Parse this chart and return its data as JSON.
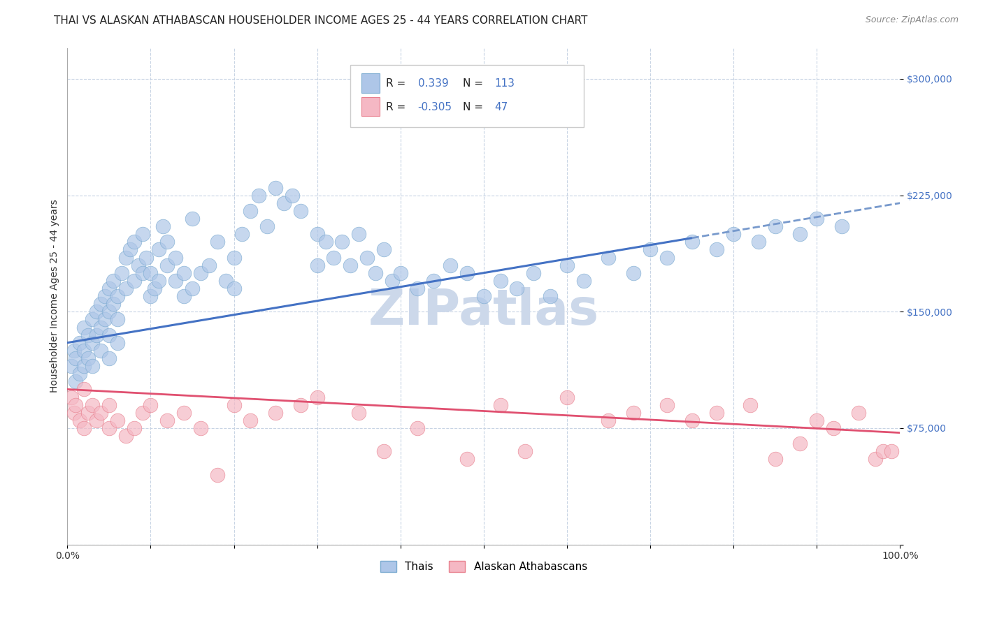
{
  "title": "THAI VS ALASKAN ATHABASCAN HOUSEHOLDER INCOME AGES 25 - 44 YEARS CORRELATION CHART",
  "source": "Source: ZipAtlas.com",
  "ylabel": "Householder Income Ages 25 - 44 years",
  "x_min": 0.0,
  "x_max": 1.0,
  "y_min": 0,
  "y_max": 320000,
  "y_ticks": [
    0,
    75000,
    150000,
    225000,
    300000
  ],
  "y_tick_labels": [
    "",
    "$75,000",
    "$150,000",
    "$225,000",
    "$300,000"
  ],
  "x_ticks": [
    0.0,
    0.1,
    0.2,
    0.3,
    0.4,
    0.5,
    0.6,
    0.7,
    0.8,
    0.9,
    1.0
  ],
  "x_tick_labels": [
    "0.0%",
    "",
    "",
    "",
    "",
    "",
    "",
    "",
    "",
    "",
    "100.0%"
  ],
  "thai_color": "#aec6e8",
  "thai_edge_color": "#7aaad0",
  "athabascan_color": "#f5b8c4",
  "athabascan_edge_color": "#e8808e",
  "thai_line_color": "#4472c4",
  "thai_dash_color": "#7799cc",
  "athabascan_line_color": "#e05070",
  "watermark_color": "#ccd8ea",
  "legend_label_thai": "Thais",
  "legend_label_athabascan": "Alaskan Athabascans",
  "background_color": "#ffffff",
  "grid_color": "#c8d4e4",
  "title_fontsize": 11,
  "axis_label_fontsize": 10,
  "tick_fontsize": 10,
  "source_fontsize": 9,
  "watermark_fontsize": 52,
  "thai_line_y0": 130000,
  "thai_line_y1": 220000,
  "ath_line_y0": 100000,
  "ath_line_y1": 72000,
  "thai_dash_split": 0.75
}
